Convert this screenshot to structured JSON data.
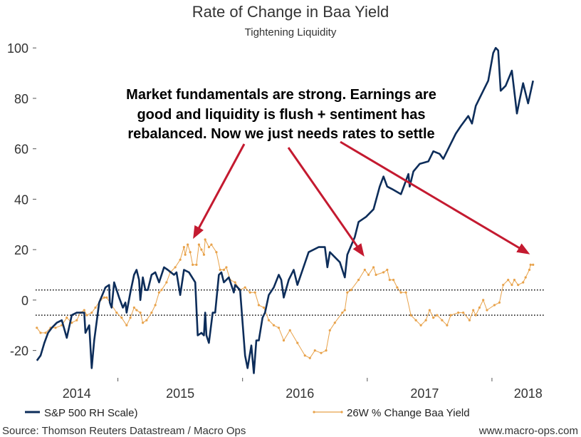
{
  "chart_data": {
    "type": "line",
    "title": "Rate of Change in Baa Yield",
    "subtitle": "Tightening Liquidity",
    "xlabel": "",
    "ylabel": "",
    "xlim": [
      2014.34,
      2018.6
    ],
    "ylim": [
      -30,
      106
    ],
    "yticks": [
      -20,
      0,
      20,
      40,
      60,
      80,
      100
    ],
    "year_boundaries": [
      2015,
      2016,
      2017,
      2018
    ],
    "xtick_labels": [
      {
        "label": "2014",
        "x": 2014.67
      },
      {
        "label": "2015",
        "x": 2015.5
      },
      {
        "label": "2016",
        "x": 2016.46
      },
      {
        "label": "2017",
        "x": 2017.46
      },
      {
        "label": "2018",
        "x": 2018.29
      }
    ],
    "reference_lines": [
      4,
      -6
    ],
    "grid": false,
    "legend_position": "bottom",
    "annotation": {
      "lines": [
        "Market fundamentals are strong. Earnings are",
        "good and liquidity is flush + sentiment has",
        "rebalanced. Now we just needs rates to settle"
      ],
      "arrow_targets": [
        [
          2015.6,
          24
        ],
        [
          2016.98,
          17
        ],
        [
          2018.31,
          18
        ]
      ]
    },
    "series": [
      {
        "name": "S&P 500 RH Scale)",
        "color": "#0d2d5a",
        "markers": false,
        "points": [
          [
            2014.35,
            -24
          ],
          [
            2014.38,
            -22
          ],
          [
            2014.41,
            -17
          ],
          [
            2014.44,
            -13
          ],
          [
            2014.47,
            -11
          ],
          [
            2014.51,
            -9
          ],
          [
            2014.55,
            -8
          ],
          [
            2014.59,
            -15
          ],
          [
            2014.63,
            -6
          ],
          [
            2014.67,
            -5
          ],
          [
            2014.73,
            -5
          ],
          [
            2014.74,
            -13
          ],
          [
            2014.77,
            -10
          ],
          [
            2014.79,
            -27
          ],
          [
            2014.81,
            -16
          ],
          [
            2014.85,
            -1
          ],
          [
            2014.9,
            5
          ],
          [
            2014.93,
            6
          ],
          [
            2014.935,
            -1
          ],
          [
            2014.95,
            -3
          ],
          [
            2014.97,
            7
          ],
          [
            2015.01,
            1
          ],
          [
            2015.04,
            -3
          ],
          [
            2015.06,
            -1
          ],
          [
            2015.07,
            -5
          ],
          [
            2015.1,
            3
          ],
          [
            2015.13,
            10
          ],
          [
            2015.15,
            12
          ],
          [
            2015.17,
            8
          ],
          [
            2015.18,
            0
          ],
          [
            2015.2,
            9
          ],
          [
            2015.22,
            4
          ],
          [
            2015.24,
            4
          ],
          [
            2015.27,
            10
          ],
          [
            2015.3,
            11
          ],
          [
            2015.33,
            7
          ],
          [
            2015.37,
            13
          ],
          [
            2015.4,
            12
          ],
          [
            2015.45,
            10
          ],
          [
            2015.47,
            11
          ],
          [
            2015.5,
            2
          ],
          [
            2015.53,
            12
          ],
          [
            2015.57,
            11
          ],
          [
            2015.62,
            7
          ],
          [
            2015.64,
            -14
          ],
          [
            2015.67,
            -13
          ],
          [
            2015.69,
            -14
          ],
          [
            2015.7,
            -5
          ],
          [
            2015.71,
            -14
          ],
          [
            2015.73,
            -17
          ],
          [
            2015.76,
            -5
          ],
          [
            2015.78,
            -5
          ],
          [
            2015.81,
            10
          ],
          [
            2015.83,
            11
          ],
          [
            2015.85,
            7
          ],
          [
            2015.89,
            9
          ],
          [
            2015.93,
            3
          ],
          [
            2015.94,
            6
          ],
          [
            2015.98,
            4
          ],
          [
            2016.02,
            -22
          ],
          [
            2016.04,
            -27
          ],
          [
            2016.07,
            -18
          ],
          [
            2016.09,
            -29
          ],
          [
            2016.11,
            -16
          ],
          [
            2016.13,
            -16
          ],
          [
            2016.16,
            -7
          ],
          [
            2016.18,
            -5
          ],
          [
            2016.21,
            2
          ],
          [
            2016.25,
            5
          ],
          [
            2016.29,
            10
          ],
          [
            2016.31,
            8
          ],
          [
            2016.33,
            1
          ],
          [
            2016.37,
            8
          ],
          [
            2016.41,
            12
          ],
          [
            2016.44,
            6
          ],
          [
            2016.53,
            19
          ],
          [
            2016.61,
            21
          ],
          [
            2016.66,
            21
          ],
          [
            2016.68,
            13
          ],
          [
            2016.7,
            19
          ],
          [
            2016.78,
            15
          ],
          [
            2016.82,
            9
          ],
          [
            2016.84,
            18
          ],
          [
            2016.9,
            25
          ],
          [
            2016.93,
            31
          ],
          [
            2016.99,
            33
          ],
          [
            2017.05,
            36
          ],
          [
            2017.1,
            45
          ],
          [
            2017.13,
            49
          ],
          [
            2017.16,
            45
          ],
          [
            2017.2,
            44
          ],
          [
            2017.27,
            42
          ],
          [
            2017.33,
            50
          ],
          [
            2017.34,
            45
          ],
          [
            2017.37,
            51
          ],
          [
            2017.42,
            54
          ],
          [
            2017.49,
            55
          ],
          [
            2017.53,
            59
          ],
          [
            2017.58,
            58
          ],
          [
            2017.61,
            56
          ],
          [
            2017.67,
            62
          ],
          [
            2017.71,
            66
          ],
          [
            2017.75,
            69
          ],
          [
            2017.81,
            73
          ],
          [
            2017.84,
            70
          ],
          [
            2017.87,
            77
          ],
          [
            2017.93,
            83
          ],
          [
            2017.97,
            87
          ],
          [
            2018.01,
            98
          ],
          [
            2018.03,
            100
          ],
          [
            2018.05,
            99
          ],
          [
            2018.07,
            83
          ],
          [
            2018.11,
            85
          ],
          [
            2018.16,
            91
          ],
          [
            2018.2,
            74
          ],
          [
            2018.22,
            79
          ],
          [
            2018.25,
            86
          ],
          [
            2018.29,
            78
          ],
          [
            2018.33,
            87
          ]
        ]
      },
      {
        "name": "26W % Change Baa Yield",
        "color": "#e8a24a",
        "markers": true,
        "points": [
          [
            2014.35,
            -11
          ],
          [
            2014.38,
            -13
          ],
          [
            2014.42,
            -13
          ],
          [
            2014.46,
            -11
          ],
          [
            2014.5,
            -11
          ],
          [
            2014.55,
            -10
          ],
          [
            2014.59,
            -7
          ],
          [
            2014.63,
            -9
          ],
          [
            2014.67,
            -8
          ],
          [
            2014.7,
            -5
          ],
          [
            2014.73,
            -4
          ],
          [
            2014.75,
            -6
          ],
          [
            2014.79,
            -5
          ],
          [
            2014.82,
            -3
          ],
          [
            2014.86,
            0
          ],
          [
            2014.89,
            1
          ],
          [
            2014.91,
            1
          ],
          [
            2014.95,
            -2
          ],
          [
            2014.99,
            -5
          ],
          [
            2015.03,
            -7
          ],
          [
            2015.07,
            -10
          ],
          [
            2015.1,
            -7
          ],
          [
            2015.13,
            -3
          ],
          [
            2015.15,
            -4
          ],
          [
            2015.18,
            -5
          ],
          [
            2015.2,
            -9
          ],
          [
            2015.23,
            -8
          ],
          [
            2015.27,
            -5
          ],
          [
            2015.3,
            -2
          ],
          [
            2015.33,
            3
          ],
          [
            2015.35,
            4
          ],
          [
            2015.39,
            7
          ],
          [
            2015.42,
            11
          ],
          [
            2015.46,
            13
          ],
          [
            2015.5,
            16
          ],
          [
            2015.53,
            21
          ],
          [
            2015.54,
            18
          ],
          [
            2015.56,
            22
          ],
          [
            2015.58,
            19
          ],
          [
            2015.6,
            14
          ],
          [
            2015.63,
            14
          ],
          [
            2015.65,
            22
          ],
          [
            2015.67,
            20
          ],
          [
            2015.69,
            18
          ],
          [
            2015.7,
            24
          ],
          [
            2015.73,
            21
          ],
          [
            2015.75,
            22
          ],
          [
            2015.79,
            19
          ],
          [
            2015.82,
            12
          ],
          [
            2015.85,
            12
          ],
          [
            2015.87,
            13
          ],
          [
            2015.9,
            8
          ],
          [
            2015.94,
            7
          ],
          [
            2015.98,
            4
          ],
          [
            2016.02,
            5
          ],
          [
            2016.06,
            3
          ],
          [
            2016.1,
            3
          ],
          [
            2016.13,
            -2
          ],
          [
            2016.17,
            -3
          ],
          [
            2016.21,
            -8
          ],
          [
            2016.25,
            -10
          ],
          [
            2016.29,
            -11
          ],
          [
            2016.33,
            -16
          ],
          [
            2016.38,
            -12
          ],
          [
            2016.44,
            -17
          ],
          [
            2016.5,
            -22
          ],
          [
            2016.54,
            -23
          ],
          [
            2016.58,
            -20
          ],
          [
            2016.63,
            -21
          ],
          [
            2016.67,
            -20
          ],
          [
            2016.7,
            -12
          ],
          [
            2016.74,
            -9
          ],
          [
            2016.8,
            -5
          ],
          [
            2016.82,
            -4
          ],
          [
            2016.84,
            3
          ],
          [
            2016.87,
            4
          ],
          [
            2016.93,
            8
          ],
          [
            2016.98,
            12
          ],
          [
            2017.01,
            10
          ],
          [
            2017.05,
            13
          ],
          [
            2017.07,
            10
          ],
          [
            2017.13,
            11
          ],
          [
            2017.16,
            12
          ],
          [
            2017.18,
            8
          ],
          [
            2017.21,
            8
          ],
          [
            2017.24,
            5
          ],
          [
            2017.27,
            3
          ],
          [
            2017.31,
            3
          ],
          [
            2017.35,
            -6
          ],
          [
            2017.39,
            -8
          ],
          [
            2017.43,
            -10
          ],
          [
            2017.47,
            -8
          ],
          [
            2017.5,
            -4
          ],
          [
            2017.53,
            -7
          ],
          [
            2017.56,
            -6
          ],
          [
            2017.6,
            -8
          ],
          [
            2017.64,
            -10
          ],
          [
            2017.67,
            -6
          ],
          [
            2017.73,
            -5
          ],
          [
            2017.77,
            -5
          ],
          [
            2017.82,
            -8
          ],
          [
            2017.85,
            -4
          ],
          [
            2017.87,
            -6
          ],
          [
            2017.9,
            -3
          ],
          [
            2017.93,
            0
          ],
          [
            2017.96,
            -4
          ],
          [
            2018.02,
            -2
          ],
          [
            2018.06,
            -1
          ],
          [
            2018.09,
            6
          ],
          [
            2018.13,
            8
          ],
          [
            2018.16,
            6
          ],
          [
            2018.18,
            8
          ],
          [
            2018.21,
            6
          ],
          [
            2018.25,
            7
          ],
          [
            2018.27,
            9
          ],
          [
            2018.3,
            12
          ],
          [
            2018.31,
            14
          ],
          [
            2018.33,
            14
          ]
        ]
      }
    ],
    "arrow_color": "#c41a30"
  },
  "footer": {
    "source": "Source: Thomson Reuters Datastream / Macro Ops",
    "website": "www.macro-ops.com"
  }
}
